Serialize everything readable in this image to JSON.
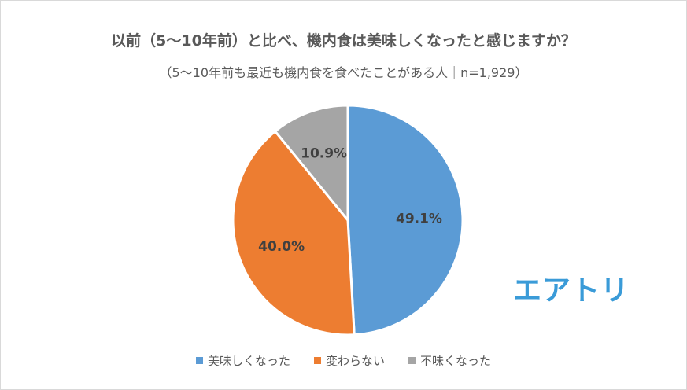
{
  "chart_data": {
    "type": "pie",
    "title": "以前（5〜10年前）と比べ、機内食は美味しくなったと感じますか？",
    "subtitle": "（5〜10年前も最近も機内食を食べたことがある人｜n=1,929）",
    "categories": [
      "美味しくなった",
      "変わらない",
      "不味くなった"
    ],
    "values": [
      49.1,
      40.0,
      10.9
    ],
    "labels": [
      "49.1%",
      "40.0%",
      "10.9%"
    ],
    "colors": [
      "#5b9bd5",
      "#ed7d31",
      "#a5a5a5"
    ],
    "legend_position": "bottom"
  },
  "logo_text": "エアトリ"
}
